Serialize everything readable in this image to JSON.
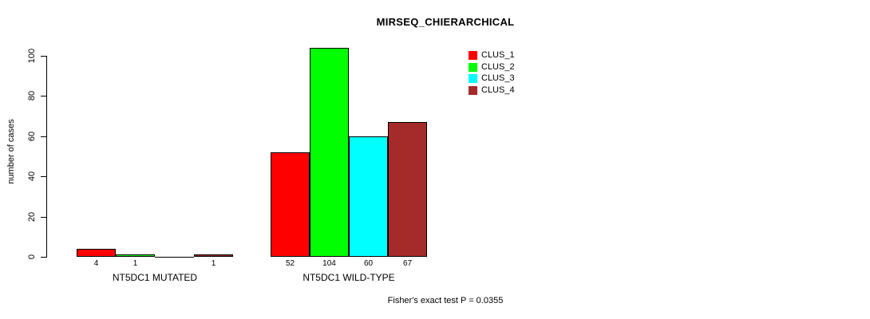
{
  "chart_data": {
    "type": "bar",
    "title": "MIRSEQ_CHIERARCHICAL",
    "ylabel": "number of cases",
    "xlabel": "",
    "ylim": [
      0,
      100
    ],
    "yticks": [
      0,
      20,
      40,
      60,
      80,
      100
    ],
    "categories": [
      "NT5DC1 MUTATED",
      "NT5DC1 WILD-TYPE"
    ],
    "series": [
      {
        "name": "CLUS_1",
        "color": "#ff0000",
        "values": [
          4,
          52
        ]
      },
      {
        "name": "CLUS_2",
        "color": "#00ff00",
        "values": [
          1,
          104
        ]
      },
      {
        "name": "CLUS_3",
        "color": "#00ffff",
        "values": [
          0,
          60
        ]
      },
      {
        "name": "CLUS_4",
        "color": "#a52a2a",
        "values": [
          1,
          67
        ]
      }
    ],
    "bar_value_labels": [
      [
        "4",
        "1",
        "",
        "1"
      ],
      [
        "52",
        "104",
        "60",
        "67"
      ]
    ],
    "legend": {
      "position": "top-right",
      "entries": [
        "CLUS_1",
        "CLUS_2",
        "CLUS_3",
        "CLUS_4"
      ]
    },
    "annotation": "Fisher's exact test P = 0.0355",
    "grid": false,
    "axis_color": "#000000",
    "background": "#ffffff"
  }
}
